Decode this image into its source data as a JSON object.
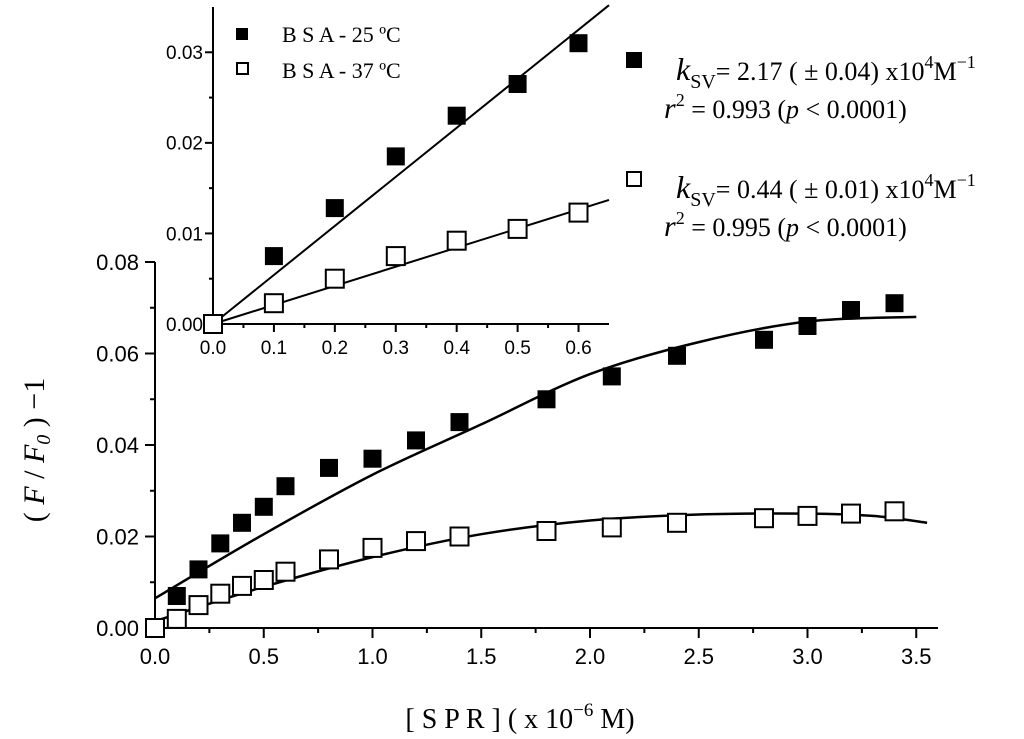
{
  "chart_data": [
    {
      "type": "scatter",
      "xlabel": "[ S P R ] ( x 10",
      "xlabel_exp": "−6",
      "xlabel_unit": "M)",
      "ylabel_parts": [
        "( ",
        "F",
        " / ",
        "F",
        "0",
        " ) −1"
      ],
      "xlim": [
        0,
        3.6
      ],
      "ylim": [
        0,
        0.08
      ],
      "xticks": [
        "0.0",
        "0.5",
        "1.0",
        "1.5",
        "2.0",
        "2.5",
        "3.0",
        "3.5"
      ],
      "yticks": [
        "0.00",
        "0.02",
        "0.04",
        "0.06",
        "0.08"
      ],
      "series": [
        {
          "marker": "filled-square",
          "color": "#000000",
          "x": [
            0.0,
            0.1,
            0.2,
            0.3,
            0.4,
            0.5,
            0.6,
            0.8,
            1.0,
            1.2,
            1.4,
            1.8,
            2.1,
            2.4,
            2.8,
            3.0,
            3.2,
            3.4
          ],
          "y": [
            0.0,
            0.007,
            0.0128,
            0.0185,
            0.023,
            0.0265,
            0.031,
            0.035,
            0.037,
            0.041,
            0.045,
            0.05,
            0.055,
            0.0595,
            0.063,
            0.066,
            0.0695,
            0.071
          ],
          "fit": [
            [
              0.0,
              0.0065
            ],
            [
              0.5,
              0.0205
            ],
            [
              1.0,
              0.0335
            ],
            [
              1.5,
              0.0445
            ],
            [
              2.0,
              0.0555
            ],
            [
              2.5,
              0.0625
            ],
            [
              3.0,
              0.067
            ],
            [
              3.5,
              0.068
            ]
          ]
        },
        {
          "marker": "open-square",
          "color": "#000000",
          "x": [
            0.0,
            0.1,
            0.2,
            0.3,
            0.4,
            0.5,
            0.6,
            0.8,
            1.0,
            1.2,
            1.4,
            1.8,
            2.1,
            2.4,
            2.8,
            3.0,
            3.2,
            3.4
          ],
          "y": [
            0.0,
            0.002,
            0.005,
            0.0075,
            0.0092,
            0.0105,
            0.0123,
            0.015,
            0.0175,
            0.019,
            0.02,
            0.0212,
            0.022,
            0.023,
            0.024,
            0.0245,
            0.025,
            0.0255
          ],
          "fit": [
            [
              0.0,
              0.0015
            ],
            [
              0.5,
              0.009
            ],
            [
              1.0,
              0.0155
            ],
            [
              1.5,
              0.0205
            ],
            [
              2.0,
              0.0235
            ],
            [
              2.5,
              0.0248
            ],
            [
              3.0,
              0.025
            ],
            [
              3.3,
              0.0245
            ],
            [
              3.55,
              0.023
            ]
          ]
        }
      ]
    },
    {
      "type": "scatter",
      "xlim": [
        0,
        0.65
      ],
      "ylim": [
        0,
        0.035
      ],
      "xticks": [
        "0.0",
        "0.1",
        "0.2",
        "0.3",
        "0.4",
        "0.5",
        "0.6"
      ],
      "yticks": [
        "0.00",
        "0.01",
        "0.02",
        "0.03"
      ],
      "series": [
        {
          "name": "B S A - 25 ºC",
          "marker": "filled-square",
          "color": "#000000",
          "x": [
            0.0,
            0.1,
            0.2,
            0.3,
            0.4,
            0.5,
            0.6
          ],
          "y": [
            0.0,
            0.0075,
            0.0128,
            0.0185,
            0.023,
            0.0265,
            0.031
          ],
          "fit": [
            [
              0.0,
              0.0
            ],
            [
              0.65,
              0.0352
            ]
          ]
        },
        {
          "name": "B S A - 37 ºC",
          "marker": "open-square",
          "color": "#000000",
          "x": [
            0.0,
            0.1,
            0.2,
            0.3,
            0.4,
            0.5,
            0.6
          ],
          "y": [
            0.0,
            0.0023,
            0.005,
            0.0075,
            0.0092,
            0.0105,
            0.0123
          ],
          "fit": [
            [
              0.0,
              0.0
            ],
            [
              0.65,
              0.0137
            ]
          ]
        }
      ]
    }
  ],
  "annotations": [
    {
      "marker": "filled-square",
      "k_sym": "k",
      "k_sub": "SV",
      "k_val": "= 2.17 ( ± 0.04) x10",
      "k_exp": "4",
      "k_unit": "M",
      "k_unit_exp": "−1",
      "r_sym": "r",
      "r_exp": "2",
      "r_val": " = 0.993 (",
      "p_sym": "p",
      "p_val": " < 0.0001)"
    },
    {
      "marker": "open-square",
      "k_sym": "k",
      "k_sub": "SV",
      "k_val": "= 0.44 ( ± 0.01) x10",
      "k_exp": "4",
      "k_unit": "M",
      "k_unit_exp": "−1",
      "r_sym": "r",
      "r_exp": "2",
      "r_val": " = 0.995 (",
      "p_sym": "p",
      "p_val": " < 0.0001)"
    }
  ]
}
